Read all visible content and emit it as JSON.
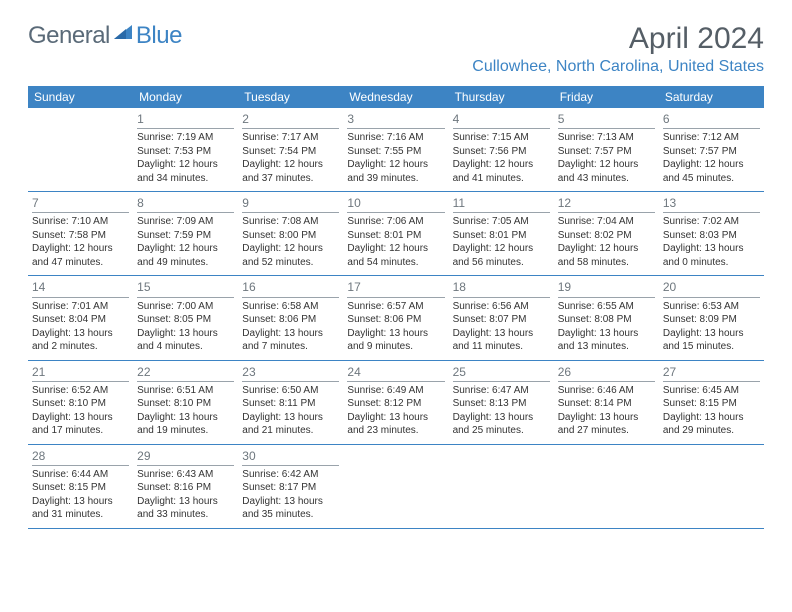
{
  "brand": {
    "part1": "General",
    "part2": "Blue"
  },
  "title": "April 2024",
  "location": "Cullowhee, North Carolina, United States",
  "calendar": {
    "header_bg": "#3d84c4",
    "header_text_color": "#ffffff",
    "rule_color": "#3d84c4",
    "daynum_color": "#6e777e",
    "body_text_color": "#333333",
    "font_family": "Arial",
    "daynum_fontsize": 12,
    "body_fontsize": 10,
    "dow": [
      "Sunday",
      "Monday",
      "Tuesday",
      "Wednesday",
      "Thursday",
      "Friday",
      "Saturday"
    ],
    "weeks": [
      [
        null,
        {
          "n": "1",
          "sunrise": "7:19 AM",
          "sunset": "7:53 PM",
          "dlh": "12",
          "dlm": "34"
        },
        {
          "n": "2",
          "sunrise": "7:17 AM",
          "sunset": "7:54 PM",
          "dlh": "12",
          "dlm": "37"
        },
        {
          "n": "3",
          "sunrise": "7:16 AM",
          "sunset": "7:55 PM",
          "dlh": "12",
          "dlm": "39"
        },
        {
          "n": "4",
          "sunrise": "7:15 AM",
          "sunset": "7:56 PM",
          "dlh": "12",
          "dlm": "41"
        },
        {
          "n": "5",
          "sunrise": "7:13 AM",
          "sunset": "7:57 PM",
          "dlh": "12",
          "dlm": "43"
        },
        {
          "n": "6",
          "sunrise": "7:12 AM",
          "sunset": "7:57 PM",
          "dlh": "12",
          "dlm": "45"
        }
      ],
      [
        {
          "n": "7",
          "sunrise": "7:10 AM",
          "sunset": "7:58 PM",
          "dlh": "12",
          "dlm": "47"
        },
        {
          "n": "8",
          "sunrise": "7:09 AM",
          "sunset": "7:59 PM",
          "dlh": "12",
          "dlm": "49"
        },
        {
          "n": "9",
          "sunrise": "7:08 AM",
          "sunset": "8:00 PM",
          "dlh": "12",
          "dlm": "52"
        },
        {
          "n": "10",
          "sunrise": "7:06 AM",
          "sunset": "8:01 PM",
          "dlh": "12",
          "dlm": "54"
        },
        {
          "n": "11",
          "sunrise": "7:05 AM",
          "sunset": "8:01 PM",
          "dlh": "12",
          "dlm": "56"
        },
        {
          "n": "12",
          "sunrise": "7:04 AM",
          "sunset": "8:02 PM",
          "dlh": "12",
          "dlm": "58"
        },
        {
          "n": "13",
          "sunrise": "7:02 AM",
          "sunset": "8:03 PM",
          "dlh": "13",
          "dlm": "0"
        }
      ],
      [
        {
          "n": "14",
          "sunrise": "7:01 AM",
          "sunset": "8:04 PM",
          "dlh": "13",
          "dlm": "2"
        },
        {
          "n": "15",
          "sunrise": "7:00 AM",
          "sunset": "8:05 PM",
          "dlh": "13",
          "dlm": "4"
        },
        {
          "n": "16",
          "sunrise": "6:58 AM",
          "sunset": "8:06 PM",
          "dlh": "13",
          "dlm": "7"
        },
        {
          "n": "17",
          "sunrise": "6:57 AM",
          "sunset": "8:06 PM",
          "dlh": "13",
          "dlm": "9"
        },
        {
          "n": "18",
          "sunrise": "6:56 AM",
          "sunset": "8:07 PM",
          "dlh": "13",
          "dlm": "11"
        },
        {
          "n": "19",
          "sunrise": "6:55 AM",
          "sunset": "8:08 PM",
          "dlh": "13",
          "dlm": "13"
        },
        {
          "n": "20",
          "sunrise": "6:53 AM",
          "sunset": "8:09 PM",
          "dlh": "13",
          "dlm": "15"
        }
      ],
      [
        {
          "n": "21",
          "sunrise": "6:52 AM",
          "sunset": "8:10 PM",
          "dlh": "13",
          "dlm": "17"
        },
        {
          "n": "22",
          "sunrise": "6:51 AM",
          "sunset": "8:10 PM",
          "dlh": "13",
          "dlm": "19"
        },
        {
          "n": "23",
          "sunrise": "6:50 AM",
          "sunset": "8:11 PM",
          "dlh": "13",
          "dlm": "21"
        },
        {
          "n": "24",
          "sunrise": "6:49 AM",
          "sunset": "8:12 PM",
          "dlh": "13",
          "dlm": "23"
        },
        {
          "n": "25",
          "sunrise": "6:47 AM",
          "sunset": "8:13 PM",
          "dlh": "13",
          "dlm": "25"
        },
        {
          "n": "26",
          "sunrise": "6:46 AM",
          "sunset": "8:14 PM",
          "dlh": "13",
          "dlm": "27"
        },
        {
          "n": "27",
          "sunrise": "6:45 AM",
          "sunset": "8:15 PM",
          "dlh": "13",
          "dlm": "29"
        }
      ],
      [
        {
          "n": "28",
          "sunrise": "6:44 AM",
          "sunset": "8:15 PM",
          "dlh": "13",
          "dlm": "31"
        },
        {
          "n": "29",
          "sunrise": "6:43 AM",
          "sunset": "8:16 PM",
          "dlh": "13",
          "dlm": "33"
        },
        {
          "n": "30",
          "sunrise": "6:42 AM",
          "sunset": "8:17 PM",
          "dlh": "13",
          "dlm": "35"
        },
        null,
        null,
        null,
        null
      ]
    ]
  },
  "labels": {
    "sunrise_prefix": "Sunrise: ",
    "sunset_prefix": "Sunset: ",
    "daylight_prefix": "Daylight: ",
    "hours_word": " hours",
    "and_word": "and ",
    "minutes_word": " minutes."
  }
}
